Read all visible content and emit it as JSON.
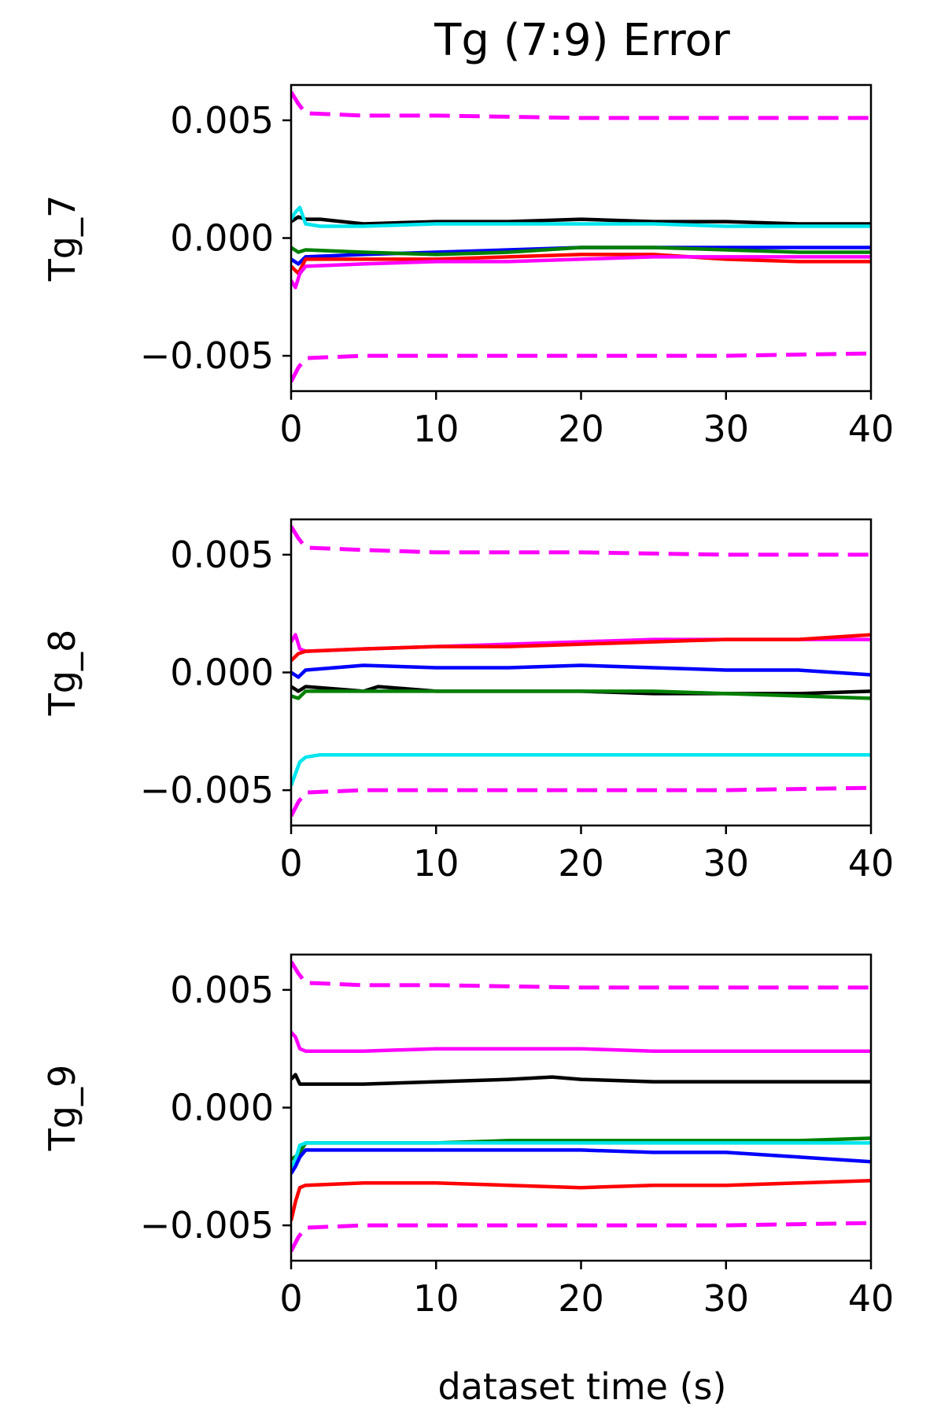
{
  "figure": {
    "title": "Tg (7:9) Error",
    "xlabel": "dataset time (s)"
  },
  "chart_data": [
    {
      "type": "line",
      "ylabel": "Tg_7",
      "xlim": [
        0,
        40
      ],
      "ylim": [
        -0.0065,
        0.0065
      ],
      "xticks": [
        0,
        10,
        20,
        30,
        40
      ],
      "xtick_labels": [
        "0",
        "10",
        "20",
        "30",
        "40"
      ],
      "yticks": [
        0.005,
        0.0,
        -0.005
      ],
      "ytick_labels": [
        "0.005",
        "0.000",
        "−0.005"
      ],
      "grid": false,
      "series": [
        {
          "color": "#ff00ff",
          "dash": true,
          "x": [
            0,
            0.5,
            1,
            5,
            10,
            20,
            30,
            40
          ],
          "y": [
            0.0062,
            0.0057,
            0.0053,
            0.0052,
            0.0052,
            0.0051,
            0.0051,
            0.0051
          ]
        },
        {
          "color": "#ff00ff",
          "dash": true,
          "x": [
            0,
            0.5,
            1,
            5,
            10,
            20,
            30,
            40
          ],
          "y": [
            -0.0061,
            -0.0055,
            -0.0051,
            -0.005,
            -0.005,
            -0.005,
            -0.005,
            -0.0049
          ]
        },
        {
          "color": "#000000",
          "dash": false,
          "x": [
            0,
            0.5,
            1,
            2,
            5,
            10,
            15,
            20,
            25,
            30,
            35,
            40
          ],
          "y": [
            0.0007,
            0.0009,
            0.0008,
            0.0008,
            0.0006,
            0.0007,
            0.0007,
            0.0008,
            0.0007,
            0.0007,
            0.0006,
            0.0006
          ]
        },
        {
          "color": "#00e5ee",
          "dash": false,
          "x": [
            0,
            0.3,
            0.6,
            1,
            2,
            5,
            10,
            15,
            20,
            25,
            30,
            35,
            40
          ],
          "y": [
            0.0008,
            0.0011,
            0.0013,
            0.0006,
            0.0005,
            0.0005,
            0.0006,
            0.0006,
            0.0006,
            0.0006,
            0.0005,
            0.0005,
            0.0005
          ]
        },
        {
          "color": "#0000ff",
          "dash": false,
          "x": [
            0,
            0.5,
            1,
            5,
            10,
            15,
            20,
            25,
            30,
            35,
            40
          ],
          "y": [
            -0.0009,
            -0.0011,
            -0.0008,
            -0.0007,
            -0.0006,
            -0.0005,
            -0.0004,
            -0.0004,
            -0.0004,
            -0.0004,
            -0.0004
          ]
        },
        {
          "color": "#008000",
          "dash": false,
          "x": [
            0,
            0.5,
            1,
            5,
            10,
            15,
            20,
            25,
            30,
            35,
            40
          ],
          "y": [
            -0.0004,
            -0.0006,
            -0.0005,
            -0.0006,
            -0.0007,
            -0.0006,
            -0.0004,
            -0.0004,
            -0.0005,
            -0.0006,
            -0.0006
          ]
        },
        {
          "color": "#ff0000",
          "dash": false,
          "x": [
            0,
            0.5,
            1,
            5,
            10,
            15,
            20,
            25,
            30,
            35,
            40
          ],
          "y": [
            -0.0012,
            -0.0015,
            -0.0009,
            -0.0009,
            -0.0009,
            -0.0008,
            -0.0007,
            -0.0007,
            -0.0009,
            -0.001,
            -0.001
          ]
        },
        {
          "color": "#ff00ff",
          "dash": false,
          "x": [
            0,
            0.3,
            0.6,
            1,
            5,
            10,
            15,
            20,
            25,
            30,
            35,
            40
          ],
          "y": [
            -0.0018,
            -0.0021,
            -0.0015,
            -0.0012,
            -0.0011,
            -0.001,
            -0.001,
            -0.0009,
            -0.0008,
            -0.0008,
            -0.0008,
            -0.0008
          ]
        }
      ]
    },
    {
      "type": "line",
      "ylabel": "Tg_8",
      "xlim": [
        0,
        40
      ],
      "ylim": [
        -0.0065,
        0.0065
      ],
      "xticks": [
        0,
        10,
        20,
        30,
        40
      ],
      "xtick_labels": [
        "0",
        "10",
        "20",
        "30",
        "40"
      ],
      "yticks": [
        0.005,
        0.0,
        -0.005
      ],
      "ytick_labels": [
        "0.005",
        "0.000",
        "−0.005"
      ],
      "grid": false,
      "series": [
        {
          "color": "#ff00ff",
          "dash": true,
          "x": [
            0,
            0.5,
            1,
            5,
            10,
            20,
            30,
            40
          ],
          "y": [
            0.0062,
            0.0057,
            0.0053,
            0.0052,
            0.0051,
            0.0051,
            0.005,
            0.005
          ]
        },
        {
          "color": "#ff00ff",
          "dash": true,
          "x": [
            0,
            0.5,
            1,
            5,
            10,
            20,
            30,
            40
          ],
          "y": [
            -0.0061,
            -0.0055,
            -0.0051,
            -0.005,
            -0.005,
            -0.005,
            -0.005,
            -0.0049
          ]
        },
        {
          "color": "#ff00ff",
          "dash": false,
          "x": [
            0,
            0.3,
            0.6,
            1,
            5,
            10,
            15,
            20,
            25,
            30,
            35,
            40
          ],
          "y": [
            0.0013,
            0.0016,
            0.001,
            0.0009,
            0.001,
            0.0011,
            0.0012,
            0.0013,
            0.0014,
            0.0014,
            0.0014,
            0.0014
          ]
        },
        {
          "color": "#ff0000",
          "dash": false,
          "x": [
            0,
            0.5,
            1,
            5,
            10,
            15,
            20,
            25,
            30,
            35,
            40
          ],
          "y": [
            0.0005,
            0.0008,
            0.0009,
            0.001,
            0.0011,
            0.0011,
            0.0012,
            0.0013,
            0.0014,
            0.0014,
            0.0016
          ]
        },
        {
          "color": "#0000ff",
          "dash": false,
          "x": [
            0,
            0.5,
            1,
            5,
            10,
            15,
            20,
            25,
            30,
            35,
            40
          ],
          "y": [
            0.0,
            -0.0002,
            0.0001,
            0.0003,
            0.0002,
            0.0002,
            0.0003,
            0.0002,
            0.0001,
            0.0001,
            -0.0001
          ]
        },
        {
          "color": "#000000",
          "dash": false,
          "x": [
            0,
            0.5,
            1,
            3,
            5,
            6,
            10,
            15,
            20,
            25,
            30,
            35,
            40
          ],
          "y": [
            -0.0006,
            -0.0008,
            -0.0006,
            -0.0007,
            -0.0008,
            -0.0006,
            -0.0008,
            -0.0008,
            -0.0008,
            -0.0009,
            -0.0009,
            -0.0009,
            -0.0008
          ]
        },
        {
          "color": "#008000",
          "dash": false,
          "x": [
            0,
            0.5,
            1,
            5,
            10,
            15,
            20,
            25,
            30,
            35,
            40
          ],
          "y": [
            -0.001,
            -0.0011,
            -0.0008,
            -0.0008,
            -0.0008,
            -0.0008,
            -0.0008,
            -0.0008,
            -0.0009,
            -0.001,
            -0.0011
          ]
        },
        {
          "color": "#00e5ee",
          "dash": false,
          "x": [
            0,
            0.3,
            0.6,
            1,
            2,
            5,
            10,
            15,
            20,
            25,
            30,
            35,
            40
          ],
          "y": [
            -0.0048,
            -0.0043,
            -0.0038,
            -0.0036,
            -0.0035,
            -0.0035,
            -0.0035,
            -0.0035,
            -0.0035,
            -0.0035,
            -0.0035,
            -0.0035,
            -0.0035
          ]
        }
      ]
    },
    {
      "type": "line",
      "ylabel": "Tg_9",
      "xlim": [
        0,
        40
      ],
      "ylim": [
        -0.0065,
        0.0065
      ],
      "xticks": [
        0,
        10,
        20,
        30,
        40
      ],
      "xtick_labels": [
        "0",
        "10",
        "20",
        "30",
        "40"
      ],
      "yticks": [
        0.005,
        0.0,
        -0.005
      ],
      "ytick_labels": [
        "0.005",
        "0.000",
        "−0.005"
      ],
      "grid": false,
      "series": [
        {
          "color": "#ff00ff",
          "dash": true,
          "x": [
            0,
            0.5,
            1,
            5,
            10,
            20,
            30,
            40
          ],
          "y": [
            0.0062,
            0.0057,
            0.0053,
            0.0052,
            0.0052,
            0.0051,
            0.0051,
            0.0051
          ]
        },
        {
          "color": "#ff00ff",
          "dash": true,
          "x": [
            0,
            0.5,
            1,
            5,
            10,
            20,
            30,
            40
          ],
          "y": [
            -0.0061,
            -0.0055,
            -0.0051,
            -0.005,
            -0.005,
            -0.005,
            -0.005,
            -0.0049
          ]
        },
        {
          "color": "#ff00ff",
          "dash": false,
          "x": [
            0,
            0.3,
            0.6,
            1,
            5,
            10,
            15,
            20,
            25,
            30,
            35,
            40
          ],
          "y": [
            0.0032,
            0.003,
            0.0025,
            0.0024,
            0.0024,
            0.0025,
            0.0025,
            0.0025,
            0.0024,
            0.0024,
            0.0024,
            0.0024
          ]
        },
        {
          "color": "#000000",
          "dash": false,
          "x": [
            0,
            0.3,
            0.6,
            1,
            2,
            5,
            10,
            15,
            18,
            20,
            25,
            30,
            35,
            40
          ],
          "y": [
            0.0012,
            0.0014,
            0.001,
            0.001,
            0.001,
            0.001,
            0.0011,
            0.0012,
            0.0013,
            0.0012,
            0.0011,
            0.0011,
            0.0011,
            0.0011
          ]
        },
        {
          "color": "#008000",
          "dash": false,
          "x": [
            0,
            0.5,
            1,
            5,
            10,
            15,
            20,
            25,
            30,
            35,
            40
          ],
          "y": [
            -0.0022,
            -0.002,
            -0.0015,
            -0.0015,
            -0.0015,
            -0.0014,
            -0.0014,
            -0.0014,
            -0.0014,
            -0.0014,
            -0.0013
          ]
        },
        {
          "color": "#00e5ee",
          "dash": false,
          "x": [
            0,
            0.3,
            0.6,
            1,
            5,
            10,
            15,
            20,
            25,
            30,
            35,
            40
          ],
          "y": [
            -0.0026,
            -0.0022,
            -0.0016,
            -0.0015,
            -0.0015,
            -0.0015,
            -0.0015,
            -0.0015,
            -0.0015,
            -0.0015,
            -0.0015,
            -0.0015
          ]
        },
        {
          "color": "#0000ff",
          "dash": false,
          "x": [
            0,
            0.3,
            0.6,
            1,
            5,
            10,
            15,
            20,
            25,
            30,
            35,
            40
          ],
          "y": [
            -0.0028,
            -0.0025,
            -0.0021,
            -0.0018,
            -0.0018,
            -0.0018,
            -0.0018,
            -0.0018,
            -0.0019,
            -0.0019,
            -0.0021,
            -0.0023
          ]
        },
        {
          "color": "#ff0000",
          "dash": false,
          "x": [
            0,
            0.3,
            0.6,
            1,
            5,
            10,
            15,
            20,
            25,
            30,
            35,
            40
          ],
          "y": [
            -0.0048,
            -0.004,
            -0.0034,
            -0.0033,
            -0.0032,
            -0.0032,
            -0.0033,
            -0.0034,
            -0.0033,
            -0.0033,
            -0.0032,
            -0.0031
          ]
        }
      ]
    }
  ]
}
